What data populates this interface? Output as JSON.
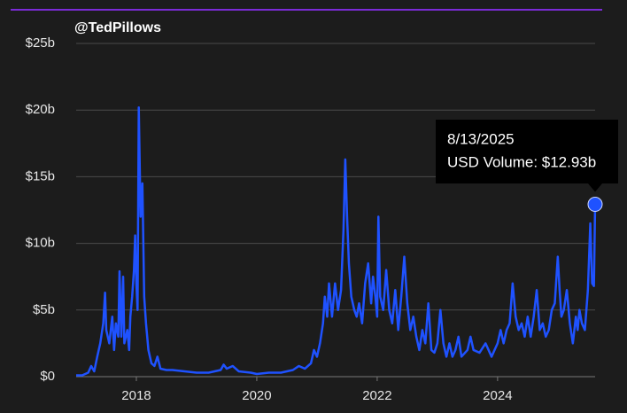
{
  "chart_data": {
    "type": "line",
    "watermark": "@TedPillows",
    "x": [
      2017.0,
      2017.1,
      2017.2,
      2017.25,
      2017.3,
      2017.35,
      2017.4,
      2017.45,
      2017.48,
      2017.5,
      2017.55,
      2017.6,
      2017.63,
      2017.66,
      2017.7,
      2017.72,
      2017.75,
      2017.78,
      2017.8,
      2017.85,
      2017.88,
      2017.9,
      2017.93,
      2017.96,
      2017.98,
      2018.0,
      2018.02,
      2018.04,
      2018.07,
      2018.1,
      2018.13,
      2018.16,
      2018.2,
      2018.25,
      2018.3,
      2018.35,
      2018.4,
      2018.5,
      2018.6,
      2018.8,
      2019.0,
      2019.2,
      2019.4,
      2019.45,
      2019.5,
      2019.6,
      2019.7,
      2019.9,
      2020.0,
      2020.2,
      2020.4,
      2020.6,
      2020.7,
      2020.8,
      2020.9,
      2020.95,
      2021.0,
      2021.05,
      2021.1,
      2021.13,
      2021.17,
      2021.2,
      2021.25,
      2021.3,
      2021.35,
      2021.4,
      2021.44,
      2021.47,
      2021.5,
      2021.53,
      2021.57,
      2021.62,
      2021.66,
      2021.7,
      2021.75,
      2021.8,
      2021.85,
      2021.9,
      2021.93,
      2021.97,
      2022.0,
      2022.02,
      2022.05,
      2022.1,
      2022.15,
      2022.2,
      2022.25,
      2022.3,
      2022.35,
      2022.4,
      2022.45,
      2022.5,
      2022.55,
      2022.6,
      2022.65,
      2022.7,
      2022.75,
      2022.8,
      2022.85,
      2022.9,
      2022.95,
      2023.0,
      2023.05,
      2023.1,
      2023.15,
      2023.2,
      2023.25,
      2023.3,
      2023.35,
      2023.4,
      2023.5,
      2023.55,
      2023.6,
      2023.7,
      2023.8,
      2023.9,
      2024.0,
      2024.05,
      2024.1,
      2024.15,
      2024.2,
      2024.25,
      2024.3,
      2024.35,
      2024.4,
      2024.45,
      2024.5,
      2024.55,
      2024.6,
      2024.65,
      2024.7,
      2024.75,
      2024.8,
      2024.85,
      2024.9,
      2024.95,
      2025.0,
      2025.03,
      2025.06,
      2025.1,
      2025.15,
      2025.2,
      2025.25,
      2025.3,
      2025.33,
      2025.36,
      2025.4,
      2025.45,
      2025.5,
      2025.54,
      2025.57,
      2025.6,
      2025.62
    ],
    "values": [
      0.1,
      0.1,
      0.3,
      0.8,
      0.4,
      1.5,
      2.5,
      4.0,
      6.3,
      3.5,
      2.5,
      4.5,
      2.0,
      4.0,
      3.0,
      7.9,
      3.0,
      7.5,
      2.5,
      3.5,
      2.0,
      4.5,
      6.0,
      8.0,
      10.6,
      7.0,
      5.0,
      20.2,
      12.0,
      14.5,
      6.0,
      4.0,
      2.0,
      1.0,
      0.8,
      1.5,
      0.6,
      0.5,
      0.5,
      0.4,
      0.3,
      0.3,
      0.5,
      0.9,
      0.6,
      0.8,
      0.4,
      0.3,
      0.2,
      0.3,
      0.3,
      0.5,
      0.8,
      0.6,
      1.0,
      2.0,
      1.5,
      2.5,
      4.0,
      6.0,
      4.5,
      7.0,
      4.5,
      7.0,
      5.0,
      6.5,
      11.0,
      16.3,
      12.0,
      8.5,
      6.0,
      5.0,
      4.5,
      5.5,
      4.0,
      7.0,
      8.5,
      5.5,
      7.5,
      6.0,
      4.5,
      12.0,
      6.0,
      5.0,
      8.0,
      5.0,
      4.0,
      6.5,
      3.5,
      6.0,
      9.0,
      5.5,
      3.5,
      4.5,
      3.0,
      2.0,
      3.5,
      2.5,
      5.5,
      2.0,
      1.8,
      2.5,
      5.0,
      2.5,
      1.5,
      2.5,
      1.5,
      2.0,
      3.0,
      1.5,
      2.0,
      3.0,
      2.0,
      1.8,
      2.5,
      1.5,
      2.5,
      3.5,
      2.5,
      3.5,
      4.0,
      7.0,
      4.5,
      3.5,
      4.0,
      3.0,
      4.5,
      3.0,
      4.5,
      6.5,
      3.5,
      4.0,
      3.0,
      3.5,
      5.0,
      5.5,
      9.0,
      6.5,
      4.5,
      5.0,
      6.5,
      4.0,
      2.5,
      4.5,
      3.5,
      5.0,
      4.0,
      3.5,
      6.5,
      11.5,
      7.0,
      6.8,
      12.93
    ],
    "color": "#1f52ff",
    "xlim": [
      2017.0,
      2025.62
    ],
    "xticks": [
      2018,
      2020,
      2022,
      2024
    ],
    "ylim": [
      0,
      25
    ],
    "yticks": [
      {
        "value": 0,
        "label": "$0"
      },
      {
        "value": 5,
        "label": "$5b"
      },
      {
        "value": 10,
        "label": "$10b"
      },
      {
        "value": 15,
        "label": "$15b"
      },
      {
        "value": 20,
        "label": "$20b"
      },
      {
        "value": 25,
        "label": "$25b"
      }
    ],
    "grid": true,
    "tooltip": {
      "date": "8/13/2025",
      "text": "USD Volume: $12.93b"
    }
  }
}
